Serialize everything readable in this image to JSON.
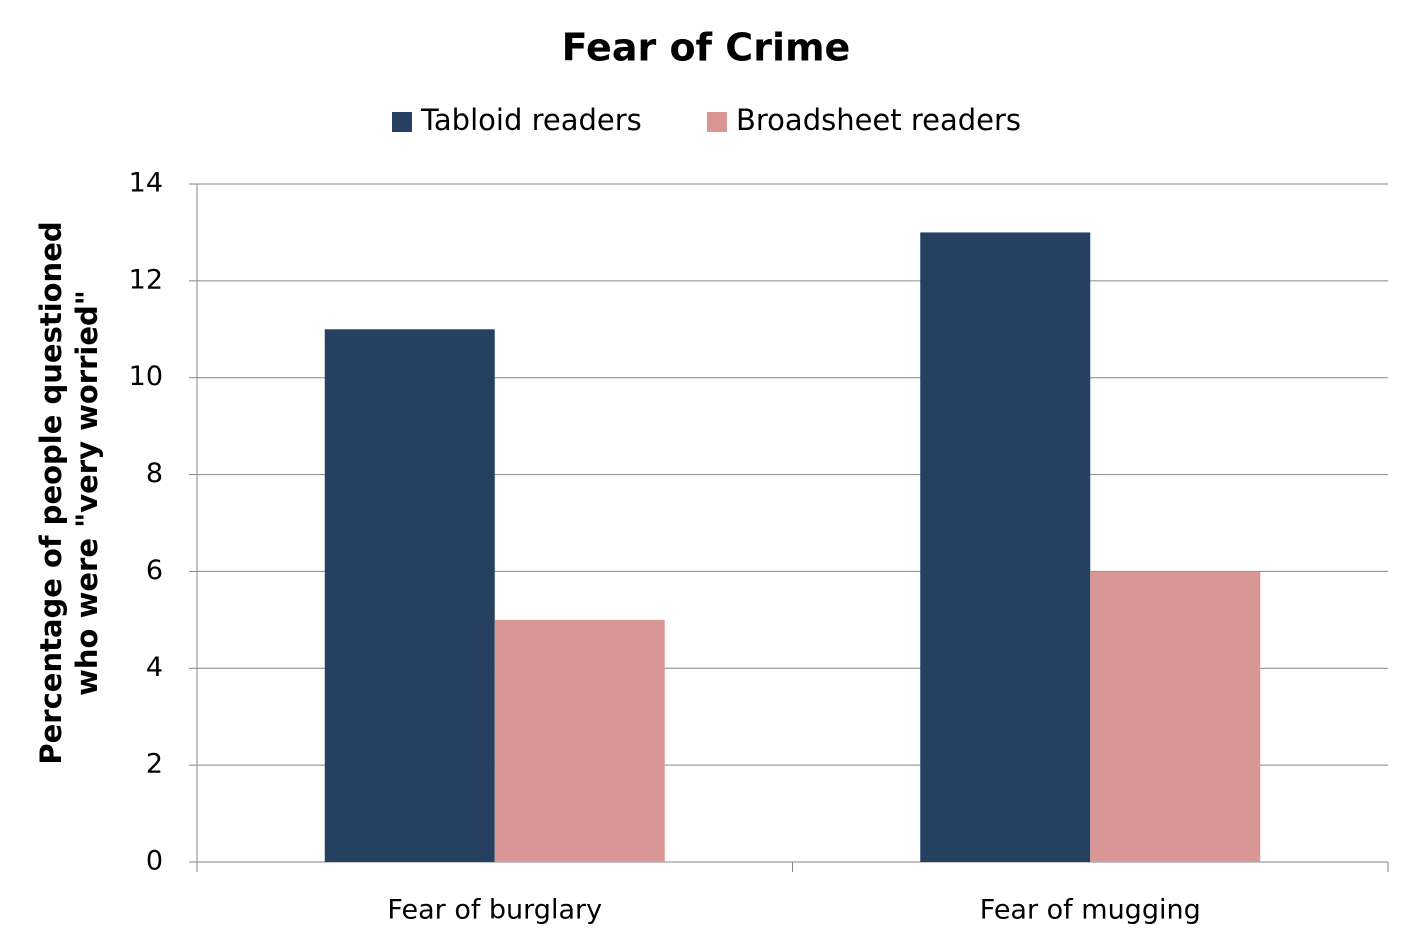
{
  "chart_data": {
    "type": "bar",
    "title": "Fear of Crime",
    "ylabel": [
      "Percentage of people questioned",
      "who were \"very worried\""
    ],
    "categories": [
      "Fear of burglary",
      "Fear of mugging"
    ],
    "series": [
      {
        "name": "Tabloid readers",
        "color": "#264061",
        "values": [
          11,
          13
        ]
      },
      {
        "name": "Broadsheet readers",
        "color": "#d99694",
        "values": [
          5,
          6
        ]
      }
    ],
    "ylim": [
      0,
      14
    ],
    "yticks": [
      0,
      2,
      4,
      6,
      8,
      10,
      12,
      14
    ],
    "grid": true,
    "legend": "top"
  }
}
